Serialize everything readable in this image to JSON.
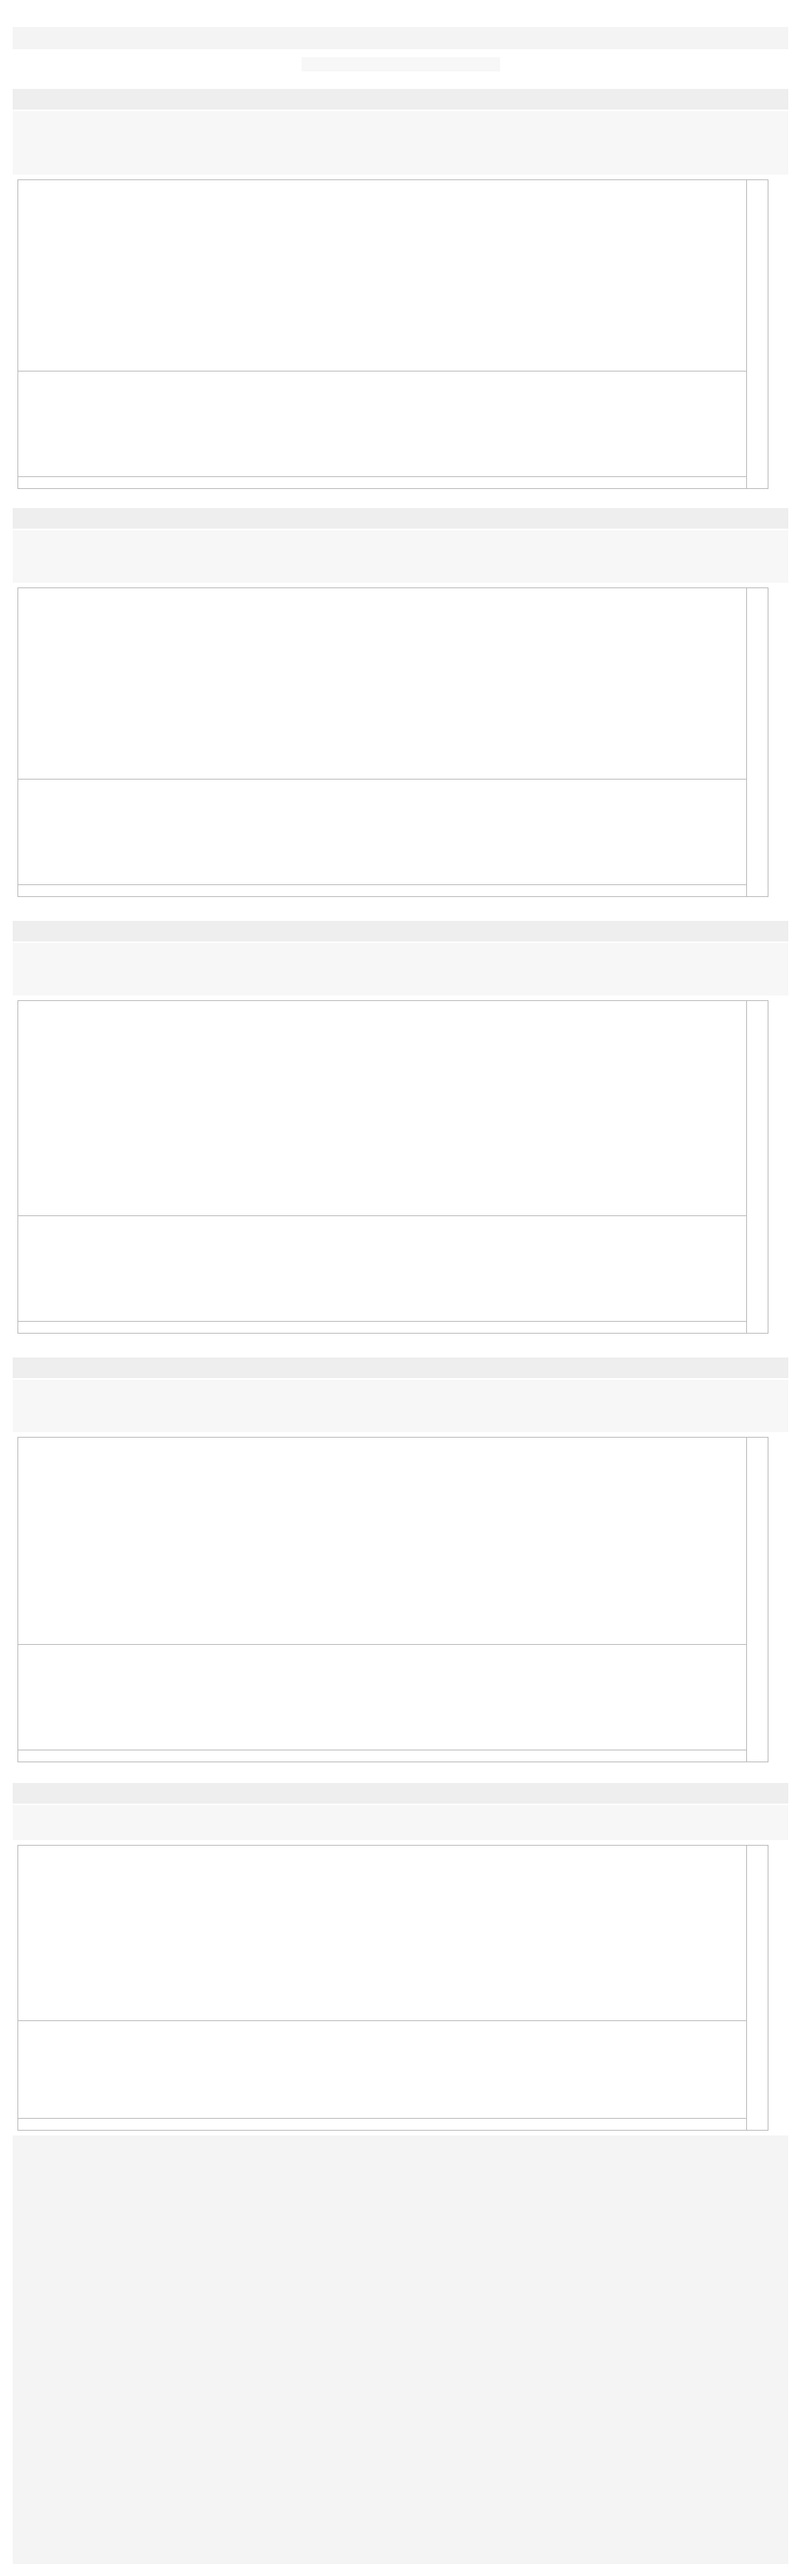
{
  "article": {
    "title": "",
    "meta": ""
  },
  "sections": [
    {
      "heading": "",
      "body": ""
    },
    {
      "heading": "",
      "body": ""
    },
    {
      "heading": "",
      "body": ""
    },
    {
      "heading": "",
      "body": ""
    },
    {
      "heading": "",
      "body": ""
    }
  ],
  "disclaimer": ""
}
